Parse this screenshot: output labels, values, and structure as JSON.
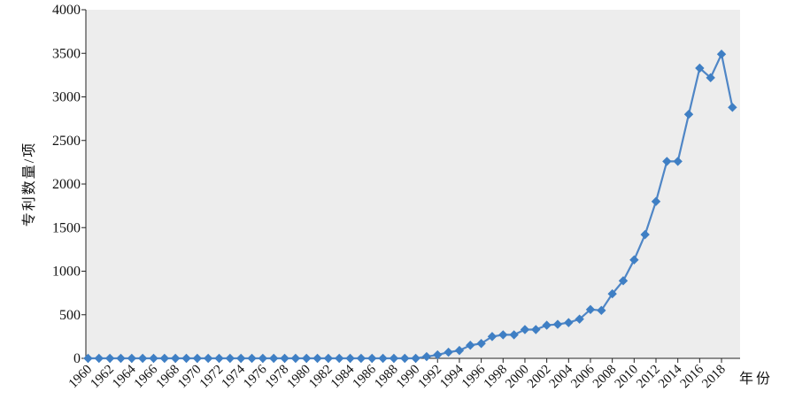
{
  "chart_data": {
    "type": "line",
    "title": "",
    "xlabel": "年份",
    "ylabel": "专利数量/项",
    "xlim": [
      1960,
      2019
    ],
    "ylim": [
      0,
      4000
    ],
    "yticks": [
      0,
      500,
      1000,
      1500,
      2000,
      2500,
      3000,
      3500,
      4000
    ],
    "xtick_labels": [
      "1960",
      "1962",
      "1964",
      "1966",
      "1968",
      "1970",
      "1972",
      "1974",
      "1976",
      "1978",
      "1980",
      "1982",
      "1984",
      "1986",
      "1988",
      "1990",
      "1992",
      "1994",
      "1996",
      "1998",
      "2000",
      "2002",
      "2004",
      "2006",
      "2008",
      "2010",
      "2012",
      "2014",
      "2016",
      "2018"
    ],
    "grid": false,
    "colors": {
      "line": "#4f86c6",
      "marker": "#3f7fc4",
      "plot_bg": "#ededed"
    },
    "series": [
      {
        "x": [
          1960,
          1961,
          1962,
          1963,
          1964,
          1965,
          1966,
          1967,
          1968,
          1969,
          1970,
          1971,
          1972,
          1973,
          1974,
          1975,
          1976,
          1977,
          1978,
          1979,
          1980,
          1981,
          1982,
          1983,
          1984,
          1985,
          1986,
          1987,
          1988,
          1989,
          1990,
          1991,
          1992,
          1993,
          1994,
          1995,
          1996,
          1997,
          1998,
          1999,
          2000,
          2001,
          2002,
          2003,
          2004,
          2005,
          2006,
          2007,
          2008,
          2009,
          2010,
          2011,
          2012,
          2013,
          2014,
          2015,
          2016,
          2017,
          2018,
          2019
        ],
        "values": [
          0,
          0,
          0,
          0,
          0,
          0,
          0,
          0,
          0,
          0,
          0,
          0,
          0,
          0,
          0,
          0,
          0,
          0,
          0,
          0,
          0,
          0,
          0,
          0,
          0,
          0,
          0,
          0,
          0,
          0,
          0,
          20,
          40,
          70,
          90,
          150,
          170,
          250,
          270,
          270,
          330,
          330,
          380,
          390,
          410,
          450,
          560,
          550,
          740,
          890,
          1130,
          1420,
          1800,
          2260,
          2260,
          2800,
          3330,
          3220,
          3490,
          2880
        ]
      }
    ]
  }
}
